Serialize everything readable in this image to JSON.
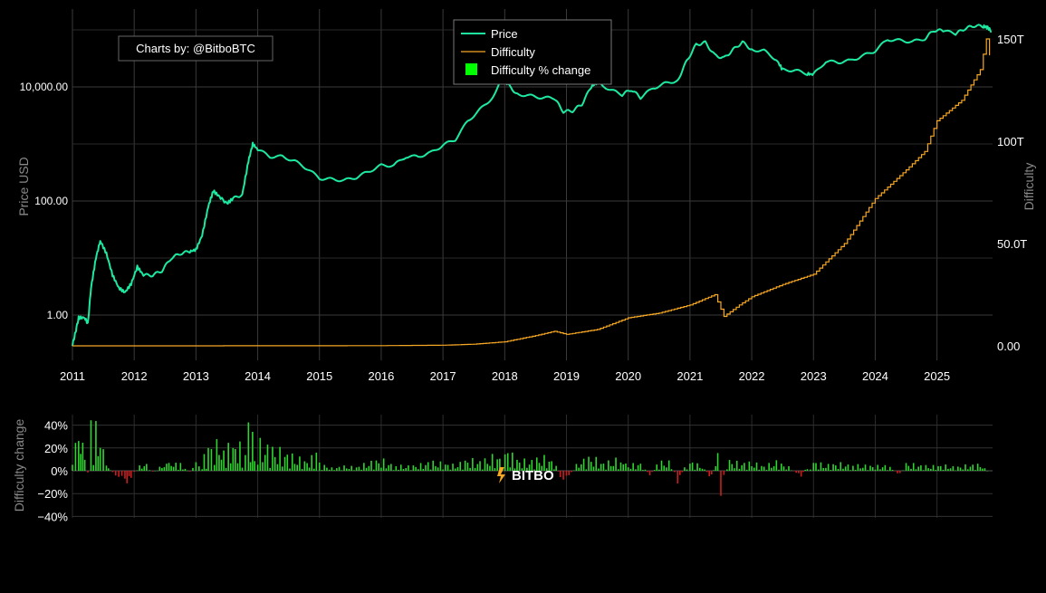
{
  "page": {
    "credit": "Charts by: @BitboBTC",
    "watermark": "BITBO"
  },
  "chart_data": [
    {
      "type": "line",
      "xlabel": "",
      "ylabel": "Price USD",
      "ylabel_right": "Difficulty",
      "x_ticks": [
        "2011",
        "2012",
        "2013",
        "2014",
        "2015",
        "2016",
        "2017",
        "2018",
        "2019",
        "2020",
        "2021",
        "2022",
        "2023",
        "2024",
        "2025"
      ],
      "y_scale": "log",
      "y_ticks_left": [
        "1.00",
        "100.00",
        "10,000.00"
      ],
      "y_ticks_right": [
        "0.00",
        "50.0T",
        "100T",
        "150T"
      ],
      "y2_range": [
        0,
        150
      ],
      "y2_unit": "T",
      "grid": true,
      "legend_position": "top-center",
      "legend": [
        "Price",
        "Difficulty",
        "Difficulty % change"
      ],
      "series": [
        {
          "name": "Price",
          "axis": "left",
          "color": "#1de9a0",
          "points": [
            [
              2011.0,
              0.3
            ],
            [
              2011.05,
              0.5
            ],
            [
              2011.1,
              0.9
            ],
            [
              2011.2,
              0.9
            ],
            [
              2011.25,
              0.7
            ],
            [
              2011.3,
              3
            ],
            [
              2011.38,
              10
            ],
            [
              2011.45,
              20
            ],
            [
              2011.55,
              12
            ],
            [
              2011.65,
              5
            ],
            [
              2011.75,
              3
            ],
            [
              2011.85,
              2.5
            ],
            [
              2011.95,
              3.5
            ],
            [
              2012.05,
              7
            ],
            [
              2012.15,
              5
            ],
            [
              2012.3,
              5
            ],
            [
              2012.45,
              6
            ],
            [
              2012.6,
              10
            ],
            [
              2012.75,
              12
            ],
            [
              2012.9,
              13
            ],
            [
              2013.0,
              14
            ],
            [
              2013.1,
              25
            ],
            [
              2013.2,
              80
            ],
            [
              2013.28,
              150
            ],
            [
              2013.38,
              120
            ],
            [
              2013.5,
              90
            ],
            [
              2013.6,
              110
            ],
            [
              2013.75,
              130
            ],
            [
              2013.85,
              500
            ],
            [
              2013.92,
              1000
            ],
            [
              2014.0,
              800
            ],
            [
              2014.2,
              600
            ],
            [
              2014.4,
              600
            ],
            [
              2014.6,
              500
            ],
            [
              2014.8,
              370
            ],
            [
              2015.0,
              250
            ],
            [
              2015.2,
              240
            ],
            [
              2015.4,
              230
            ],
            [
              2015.6,
              260
            ],
            [
              2015.8,
              330
            ],
            [
              2016.0,
              420
            ],
            [
              2016.2,
              420
            ],
            [
              2016.4,
              600
            ],
            [
              2016.6,
              600
            ],
            [
              2016.8,
              700
            ],
            [
              2017.0,
              950
            ],
            [
              2017.2,
              1200
            ],
            [
              2017.4,
              2500
            ],
            [
              2017.6,
              4000
            ],
            [
              2017.8,
              6500
            ],
            [
              2017.96,
              15000
            ],
            [
              2018.05,
              11000
            ],
            [
              2018.2,
              7500
            ],
            [
              2018.4,
              7000
            ],
            [
              2018.6,
              6500
            ],
            [
              2018.8,
              6300
            ],
            [
              2018.95,
              3700
            ],
            [
              2019.1,
              3800
            ],
            [
              2019.25,
              5000
            ],
            [
              2019.4,
              10000
            ],
            [
              2019.5,
              12000
            ],
            [
              2019.7,
              9000
            ],
            [
              2019.9,
              7300
            ],
            [
              2020.05,
              9000
            ],
            [
              2020.2,
              6500
            ],
            [
              2020.4,
              9500
            ],
            [
              2020.6,
              11500
            ],
            [
              2020.8,
              13000
            ],
            [
              2020.95,
              29000
            ],
            [
              2021.1,
              55000
            ],
            [
              2021.25,
              60000
            ],
            [
              2021.4,
              36000
            ],
            [
              2021.55,
              32000
            ],
            [
              2021.7,
              45000
            ],
            [
              2021.85,
              61000
            ],
            [
              2022.0,
              45000
            ],
            [
              2022.2,
              43000
            ],
            [
              2022.4,
              30000
            ],
            [
              2022.5,
              20000
            ],
            [
              2022.7,
              19500
            ],
            [
              2022.9,
              17000
            ],
            [
              2023.0,
              16500
            ],
            [
              2023.2,
              28000
            ],
            [
              2023.4,
              27000
            ],
            [
              2023.6,
              29000
            ],
            [
              2023.8,
              35000
            ],
            [
              2024.0,
              43000
            ],
            [
              2024.2,
              68000
            ],
            [
              2024.4,
              65000
            ],
            [
              2024.6,
              62000
            ],
            [
              2024.8,
              70000
            ],
            [
              2024.95,
              98000
            ],
            [
              2025.1,
              97000
            ],
            [
              2025.3,
              85000
            ],
            [
              2025.45,
              105000
            ],
            [
              2025.6,
              118000
            ],
            [
              2025.75,
              115000
            ],
            [
              2025.82,
              110000
            ],
            [
              2025.88,
              95000
            ]
          ]
        },
        {
          "name": "Difficulty",
          "axis": "right",
          "color": "#f5a623",
          "unit": "T",
          "points": [
            [
              2011.0,
              0
            ],
            [
              2013.0,
              0.003
            ],
            [
              2014.0,
              0.05
            ],
            [
              2015.0,
              0.04
            ],
            [
              2016.0,
              0.1
            ],
            [
              2017.0,
              0.3
            ],
            [
              2017.5,
              0.8
            ],
            [
              2018.0,
              2
            ],
            [
              2018.5,
              5
            ],
            [
              2018.8,
              7.1
            ],
            [
              2019.0,
              5.6
            ],
            [
              2019.5,
              8
            ],
            [
              2020.0,
              13.7
            ],
            [
              2020.5,
              16
            ],
            [
              2021.0,
              20
            ],
            [
              2021.4,
              25
            ],
            [
              2021.55,
              14.4
            ],
            [
              2021.8,
              20
            ],
            [
              2022.0,
              24
            ],
            [
              2022.5,
              30
            ],
            [
              2023.0,
              35
            ],
            [
              2023.5,
              50
            ],
            [
              2024.0,
              72
            ],
            [
              2024.5,
              86
            ],
            [
              2024.8,
              95
            ],
            [
              2025.0,
              110
            ],
            [
              2025.4,
              120
            ],
            [
              2025.7,
              135
            ],
            [
              2025.8,
              150
            ],
            [
              2025.85,
              142
            ]
          ]
        }
      ]
    },
    {
      "type": "bar",
      "name": "Difficulty % change",
      "ylabel": "Difficulty change",
      "x_ticks": [],
      "y_ticks": [
        "−40%",
        "−20%",
        "0%",
        "20%",
        "40%"
      ],
      "ylim": [
        -40,
        50
      ],
      "grid": true,
      "color_positive": "#2fd52f",
      "color_negative": "#cc1e1e",
      "samples": [
        [
          2011.0,
          9
        ],
        [
          2011.1,
          40
        ],
        [
          2011.2,
          30
        ],
        [
          2011.25,
          -2
        ],
        [
          2011.3,
          50
        ],
        [
          2011.38,
          50
        ],
        [
          2011.45,
          30
        ],
        [
          2011.55,
          8
        ],
        [
          2011.65,
          -3
        ],
        [
          2011.75,
          -8
        ],
        [
          2011.85,
          -18
        ],
        [
          2011.95,
          -8
        ],
        [
          2012.05,
          4
        ],
        [
          2012.2,
          8
        ],
        [
          2012.3,
          -2
        ],
        [
          2012.45,
          6
        ],
        [
          2012.6,
          9
        ],
        [
          2012.75,
          7
        ],
        [
          2012.9,
          -2
        ],
        [
          2013.0,
          8
        ],
        [
          2013.1,
          12
        ],
        [
          2013.2,
          20
        ],
        [
          2013.3,
          38
        ],
        [
          2013.45,
          20
        ],
        [
          2013.6,
          30
        ],
        [
          2013.75,
          25
        ],
        [
          2013.85,
          45
        ],
        [
          2013.95,
          35
        ],
        [
          2014.0,
          30
        ],
        [
          2014.2,
          25
        ],
        [
          2014.4,
          20
        ],
        [
          2014.6,
          15
        ],
        [
          2014.8,
          10
        ],
        [
          2014.95,
          18
        ],
        [
          2015.0,
          8
        ],
        [
          2015.2,
          3
        ],
        [
          2015.4,
          5
        ],
        [
          2015.6,
          4
        ],
        [
          2015.8,
          9
        ],
        [
          2016.0,
          12
        ],
        [
          2016.2,
          6
        ],
        [
          2016.4,
          5
        ],
        [
          2016.6,
          6
        ],
        [
          2016.8,
          10
        ],
        [
          2017.0,
          8
        ],
        [
          2017.2,
          6
        ],
        [
          2017.4,
          12
        ],
        [
          2017.6,
          10
        ],
        [
          2017.8,
          15
        ],
        [
          2017.96,
          14
        ],
        [
          2018.05,
          20
        ],
        [
          2018.2,
          12
        ],
        [
          2018.4,
          10
        ],
        [
          2018.6,
          15
        ],
        [
          2018.8,
          10
        ],
        [
          2018.9,
          -7
        ],
        [
          2018.95,
          -15
        ],
        [
          2019.0,
          -10
        ],
        [
          2019.2,
          10
        ],
        [
          2019.4,
          15
        ],
        [
          2019.6,
          8
        ],
        [
          2019.8,
          12
        ],
        [
          2020.0,
          6
        ],
        [
          2020.2,
          8
        ],
        [
          2020.35,
          -6
        ],
        [
          2020.5,
          10
        ],
        [
          2020.7,
          9
        ],
        [
          2020.8,
          -16
        ],
        [
          2020.95,
          10
        ],
        [
          2021.0,
          10
        ],
        [
          2021.2,
          5
        ],
        [
          2021.35,
          -10
        ],
        [
          2021.45,
          22
        ],
        [
          2021.5,
          -28
        ],
        [
          2021.6,
          12
        ],
        [
          2021.8,
          8
        ],
        [
          2022.0,
          9
        ],
        [
          2022.2,
          5
        ],
        [
          2022.4,
          10
        ],
        [
          2022.6,
          4
        ],
        [
          2022.8,
          -7
        ],
        [
          2022.9,
          5
        ],
        [
          2023.0,
          10
        ],
        [
          2023.2,
          6
        ],
        [
          2023.4,
          8
        ],
        [
          2023.6,
          6
        ],
        [
          2023.8,
          6
        ],
        [
          2024.0,
          5
        ],
        [
          2024.2,
          6
        ],
        [
          2024.4,
          -5
        ],
        [
          2024.5,
          8
        ],
        [
          2024.7,
          6
        ],
        [
          2024.9,
          5
        ],
        [
          2025.1,
          6
        ],
        [
          2025.3,
          4
        ],
        [
          2025.5,
          6
        ],
        [
          2025.7,
          7
        ],
        [
          2025.85,
          -2
        ]
      ]
    }
  ]
}
